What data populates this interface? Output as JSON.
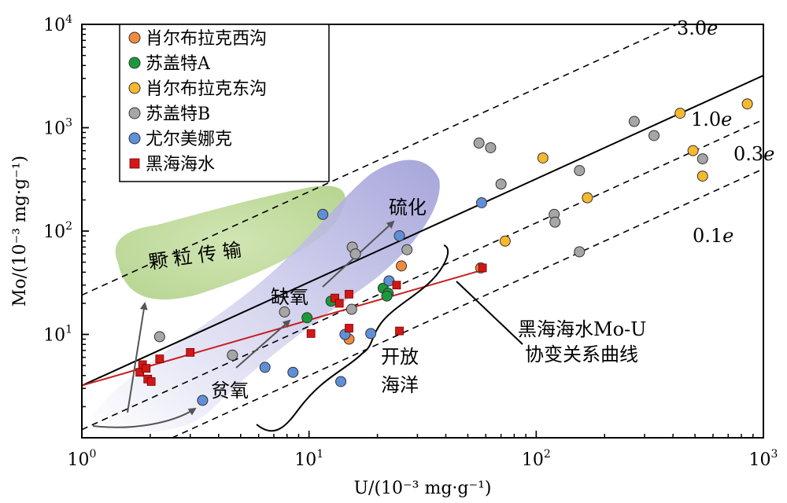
{
  "chart_data": {
    "type": "scatter",
    "xlabel": "U/(10⁻³ mg·g⁻¹)",
    "ylabel": "Mo/(10⁻³ mg·g⁻¹)",
    "xscale": "log",
    "yscale": "log",
    "xlim": [
      1,
      1000
    ],
    "ylim": [
      1,
      10000
    ],
    "x_ticks": [
      {
        "base": "10",
        "exp": "0"
      },
      {
        "base": "10",
        "exp": "1"
      },
      {
        "base": "10",
        "exp": "2"
      },
      {
        "base": "10",
        "exp": "3"
      }
    ],
    "y_ticks": [
      {
        "base": "10",
        "exp": "1"
      },
      {
        "base": "10",
        "exp": "2"
      },
      {
        "base": "10",
        "exp": "3"
      },
      {
        "base": "10",
        "exp": "4"
      }
    ],
    "series": [
      {
        "name": "肖尔布拉克西沟",
        "color": "#f08a3c",
        "marker": "circle",
        "points": [
          [
            25.5,
            46
          ],
          [
            15,
            9
          ],
          [
            57,
            44
          ]
        ]
      },
      {
        "name": "苏盖特A",
        "color": "#1a9a3a",
        "marker": "circle",
        "points": [
          [
            9.8,
            14.5
          ],
          [
            21.2,
            28
          ],
          [
            22.3,
            25
          ],
          [
            12.5,
            21
          ],
          [
            22,
            23.5
          ]
        ]
      },
      {
        "name": "肖尔布拉克东沟",
        "color": "#f5b82e",
        "marker": "circle",
        "points": [
          [
            107,
            510
          ],
          [
            168,
            210
          ],
          [
            73,
            80
          ],
          [
            430,
            1380
          ],
          [
            850,
            1700
          ],
          [
            490,
            600
          ],
          [
            540,
            340
          ]
        ]
      },
      {
        "name": "苏盖特B",
        "color": "#a6a6a6",
        "marker": "circle",
        "points": [
          [
            2.2,
            9.5
          ],
          [
            4.6,
            6.3
          ],
          [
            7.8,
            16.5
          ],
          [
            15.5,
            70
          ],
          [
            16,
            60
          ],
          [
            27,
            66
          ],
          [
            15.4,
            17.5
          ],
          [
            56,
            710
          ],
          [
            63,
            640
          ],
          [
            70,
            285
          ],
          [
            120,
            145
          ],
          [
            121,
            122
          ],
          [
            155,
            385
          ],
          [
            155,
            63
          ],
          [
            270,
            1150
          ],
          [
            330,
            840
          ],
          [
            540,
            500
          ]
        ]
      },
      {
        "name": "尤尔美娜克",
        "color": "#5f8fd8",
        "marker": "circle",
        "points": [
          [
            11.5,
            145
          ],
          [
            25,
            90
          ],
          [
            22.5,
            33
          ],
          [
            14.4,
            10
          ],
          [
            18.7,
            10.2
          ],
          [
            6.4,
            4.8
          ],
          [
            8.5,
            4.3
          ],
          [
            3.4,
            2.3
          ],
          [
            13.8,
            3.5
          ],
          [
            57.5,
            188
          ]
        ]
      },
      {
        "name": "黑海海水",
        "color": "#d01818",
        "marker": "square",
        "points": [
          [
            1.8,
            4.3
          ],
          [
            1.85,
            5.1
          ],
          [
            1.92,
            4.7
          ],
          [
            1.95,
            3.7
          ],
          [
            2.02,
            3.5
          ],
          [
            2.2,
            5.8
          ],
          [
            3,
            6.7
          ],
          [
            10.2,
            10.2
          ],
          [
            13,
            22.5
          ],
          [
            13.6,
            20
          ],
          [
            15,
            11.5
          ],
          [
            15,
            24.5
          ],
          [
            24.3,
            30
          ],
          [
            25,
            10.8
          ],
          [
            58,
            44
          ]
        ]
      }
    ],
    "reference_lines": [
      {
        "label": "3.0",
        "label_suffix": "e",
        "style": "dashed",
        "ratio": 24.0
      },
      {
        "label": "1.0",
        "label_suffix": "e",
        "style": "solid",
        "ratio": 3.2
      },
      {
        "label": "0.3",
        "label_suffix": "e",
        "style": "dashed",
        "ratio": 1.2
      },
      {
        "label": "0.1",
        "label_suffix": "e",
        "style": "dashed",
        "ratio": 0.4
      }
    ],
    "regression_line": {
      "points": [
        [
          1,
          3.2
        ],
        [
          58,
          42
        ]
      ],
      "color": "#c81e1e"
    },
    "annotations": {
      "particulate": "颗 粒 传 输",
      "sulfidic": "硫化",
      "anoxic": "缺氧",
      "suboxic": "贫氧",
      "open_ocean": "开放\n海洋",
      "open_ocean_lines": [
        "开放",
        "海洋"
      ],
      "covariation_lines": [
        "黑海海水Mo-U",
        "协变关系曲线"
      ]
    },
    "legend_position": "top-left"
  },
  "colors": {
    "particulate_fill": "#b9d58c",
    "trend_fill": "#8f8fd0",
    "arrow": "#555555"
  }
}
